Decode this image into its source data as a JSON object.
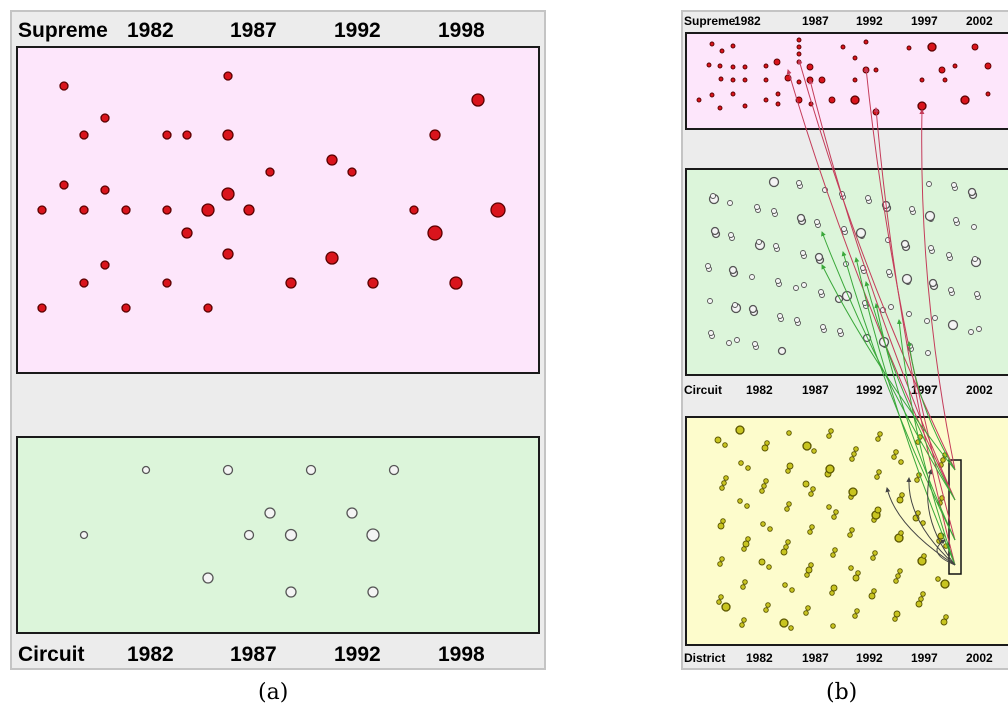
{
  "colors": {
    "supreme_bg": "#fde6fb",
    "circuit_bg": "#dcf5da",
    "district_bg": "#fdfccc",
    "supreme_node": "#d9141c",
    "circuit_node": "#f4f4f4",
    "district_node": "#c8c420",
    "red_edge": "#c43c5a",
    "green_edge": "#3aa83a",
    "dark_edge": "#444444"
  },
  "panel_a": {
    "caption": "(a)",
    "top_label": {
      "court": "Supreme",
      "years": [
        "1982",
        "1987",
        "1992",
        "1998"
      ]
    },
    "bottom_label": {
      "court": "Circuit",
      "years": [
        "1982",
        "1987",
        "1992",
        "1998"
      ]
    }
  },
  "panel_b": {
    "caption": "(b)",
    "supreme_label": {
      "court": "Supreme",
      "years": [
        "1982",
        "1987",
        "1992",
        "1997",
        "2002"
      ]
    },
    "circuit_label": {
      "court": "Circuit",
      "years": [
        "1982",
        "1987",
        "1992",
        "1997",
        "2002"
      ]
    },
    "district_label": {
      "court": "District",
      "years": [
        "1982",
        "1987",
        "1992",
        "1997",
        "2002"
      ]
    }
  }
}
